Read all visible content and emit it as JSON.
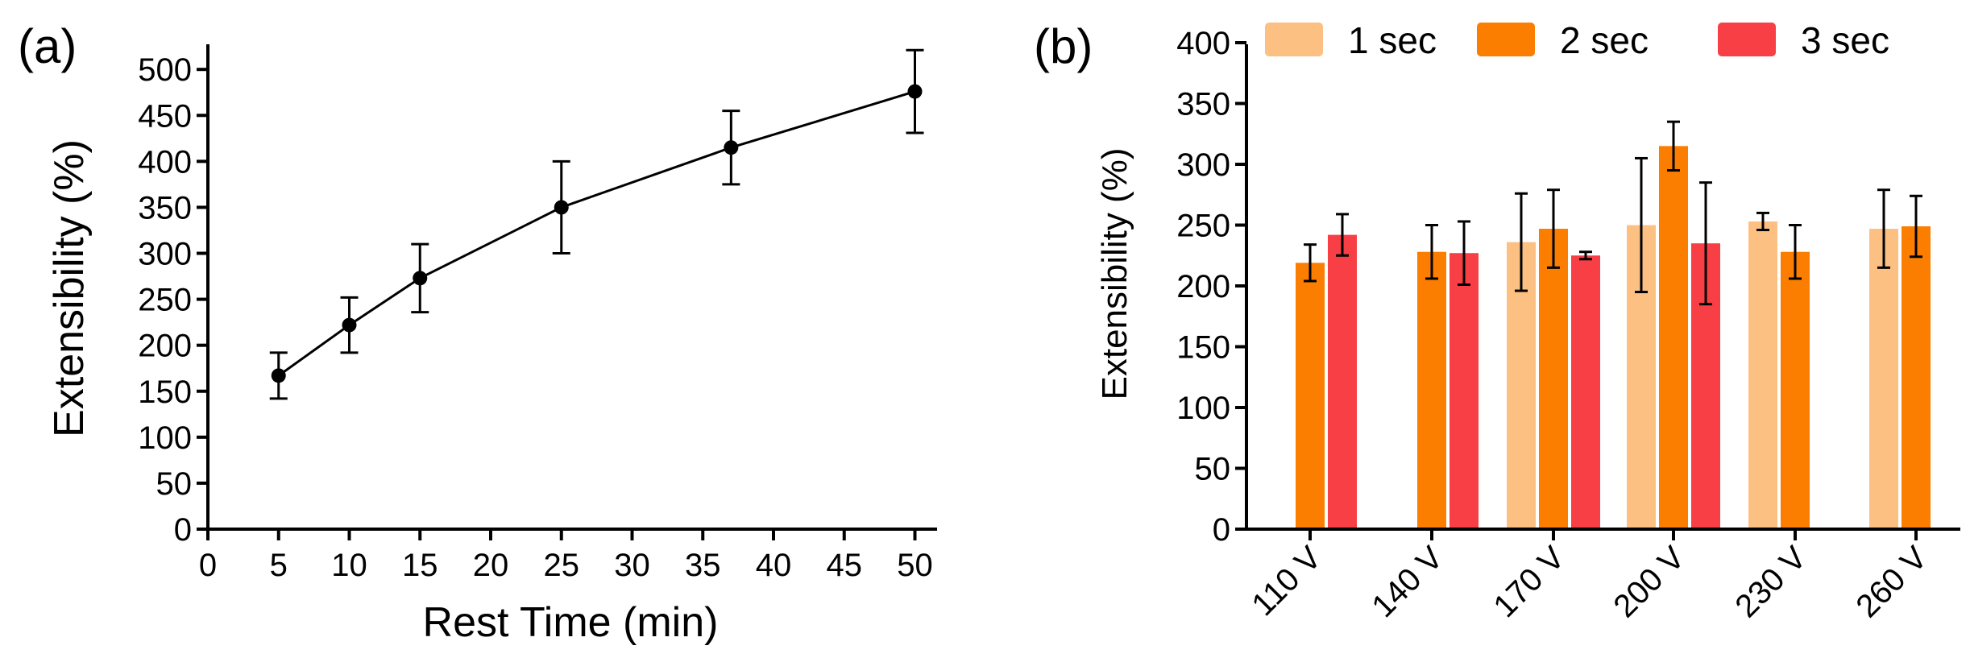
{
  "colors": {
    "axis": "#000000",
    "line": "#000000",
    "series": [
      "#FDC083",
      "#FC7E00",
      "#F73F45"
    ]
  },
  "chart_data": [
    {
      "type": "line",
      "panel_label": "(a)",
      "title": "",
      "xlabel": "Rest Time (min)",
      "ylabel": "Extensibility (%)",
      "xlim": [
        0,
        52
      ],
      "ylim": [
        0,
        500
      ],
      "x_ticks": [
        "0",
        "5",
        "10",
        "15",
        "20",
        "25",
        "30",
        "35",
        "40",
        "45",
        "50"
      ],
      "y_ticks": [
        "0",
        "50",
        "100",
        "150",
        "200",
        "250",
        "300",
        "350",
        "400",
        "450",
        "500"
      ],
      "grid": false,
      "series": [
        {
          "x": [
            5,
            10,
            15,
            25,
            37,
            50
          ],
          "y": [
            167,
            222,
            273,
            350,
            415,
            476
          ],
          "error": [
            25,
            30,
            37,
            50,
            40,
            45
          ]
        }
      ]
    },
    {
      "type": "bar",
      "panel_label": "(b)",
      "title": "",
      "xlabel": "",
      "ylabel": "Extensibility (%)",
      "ylim": [
        0,
        400
      ],
      "y_ticks": [
        "0",
        "50",
        "100",
        "150",
        "200",
        "250",
        "300",
        "350",
        "400"
      ],
      "categories": [
        "110 V",
        "140 V",
        "170 V",
        "200 V",
        "230 V",
        "260 V"
      ],
      "grid": false,
      "legend_position": "top",
      "series": [
        {
          "name": "1 sec",
          "values": [
            null,
            null,
            236,
            250,
            253,
            247
          ],
          "error": [
            null,
            null,
            40,
            55,
            7,
            32
          ]
        },
        {
          "name": "2 sec",
          "values": [
            219,
            228,
            247,
            315,
            228,
            249
          ],
          "error": [
            15,
            22,
            32,
            20,
            22,
            25
          ]
        },
        {
          "name": "3 sec",
          "values": [
            242,
            227,
            225,
            235,
            null,
            null
          ],
          "error": [
            17,
            26,
            3,
            50,
            null,
            null
          ]
        }
      ]
    }
  ]
}
